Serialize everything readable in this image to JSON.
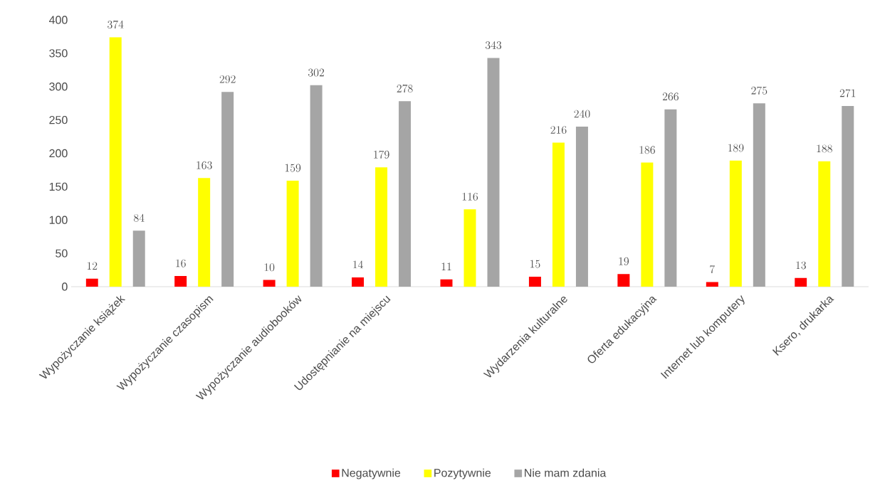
{
  "chart_data": {
    "type": "bar",
    "categories": [
      "Wypożyczanie książek",
      "Wypożyczanie czasopism",
      "Wypożyczanie audiobooków",
      "Udostępnianie na miejscu",
      null,
      "Wydarzenia kulturalne",
      "Oferta edukacyjna",
      "Internet lub komputery",
      "Ksero, drukarka"
    ],
    "series": [
      {
        "name": "Negatywnie",
        "color": "#ff0000",
        "values": [
          12,
          16,
          10,
          14,
          11,
          15,
          19,
          7,
          13
        ]
      },
      {
        "name": "Pozytywnie",
        "color": "#ffff00",
        "values": [
          374,
          163,
          159,
          179,
          116,
          216,
          186,
          189,
          188
        ]
      },
      {
        "name": "Nie mam zdania",
        "color": "#a5a5a5",
        "values": [
          84,
          292,
          302,
          278,
          343,
          240,
          266,
          275,
          271
        ]
      }
    ],
    "ylim": [
      0,
      400
    ],
    "yticks": [
      0,
      50,
      100,
      150,
      200,
      250,
      300,
      350,
      400
    ],
    "data_labels": true,
    "grid": false,
    "legend": "bottom"
  }
}
